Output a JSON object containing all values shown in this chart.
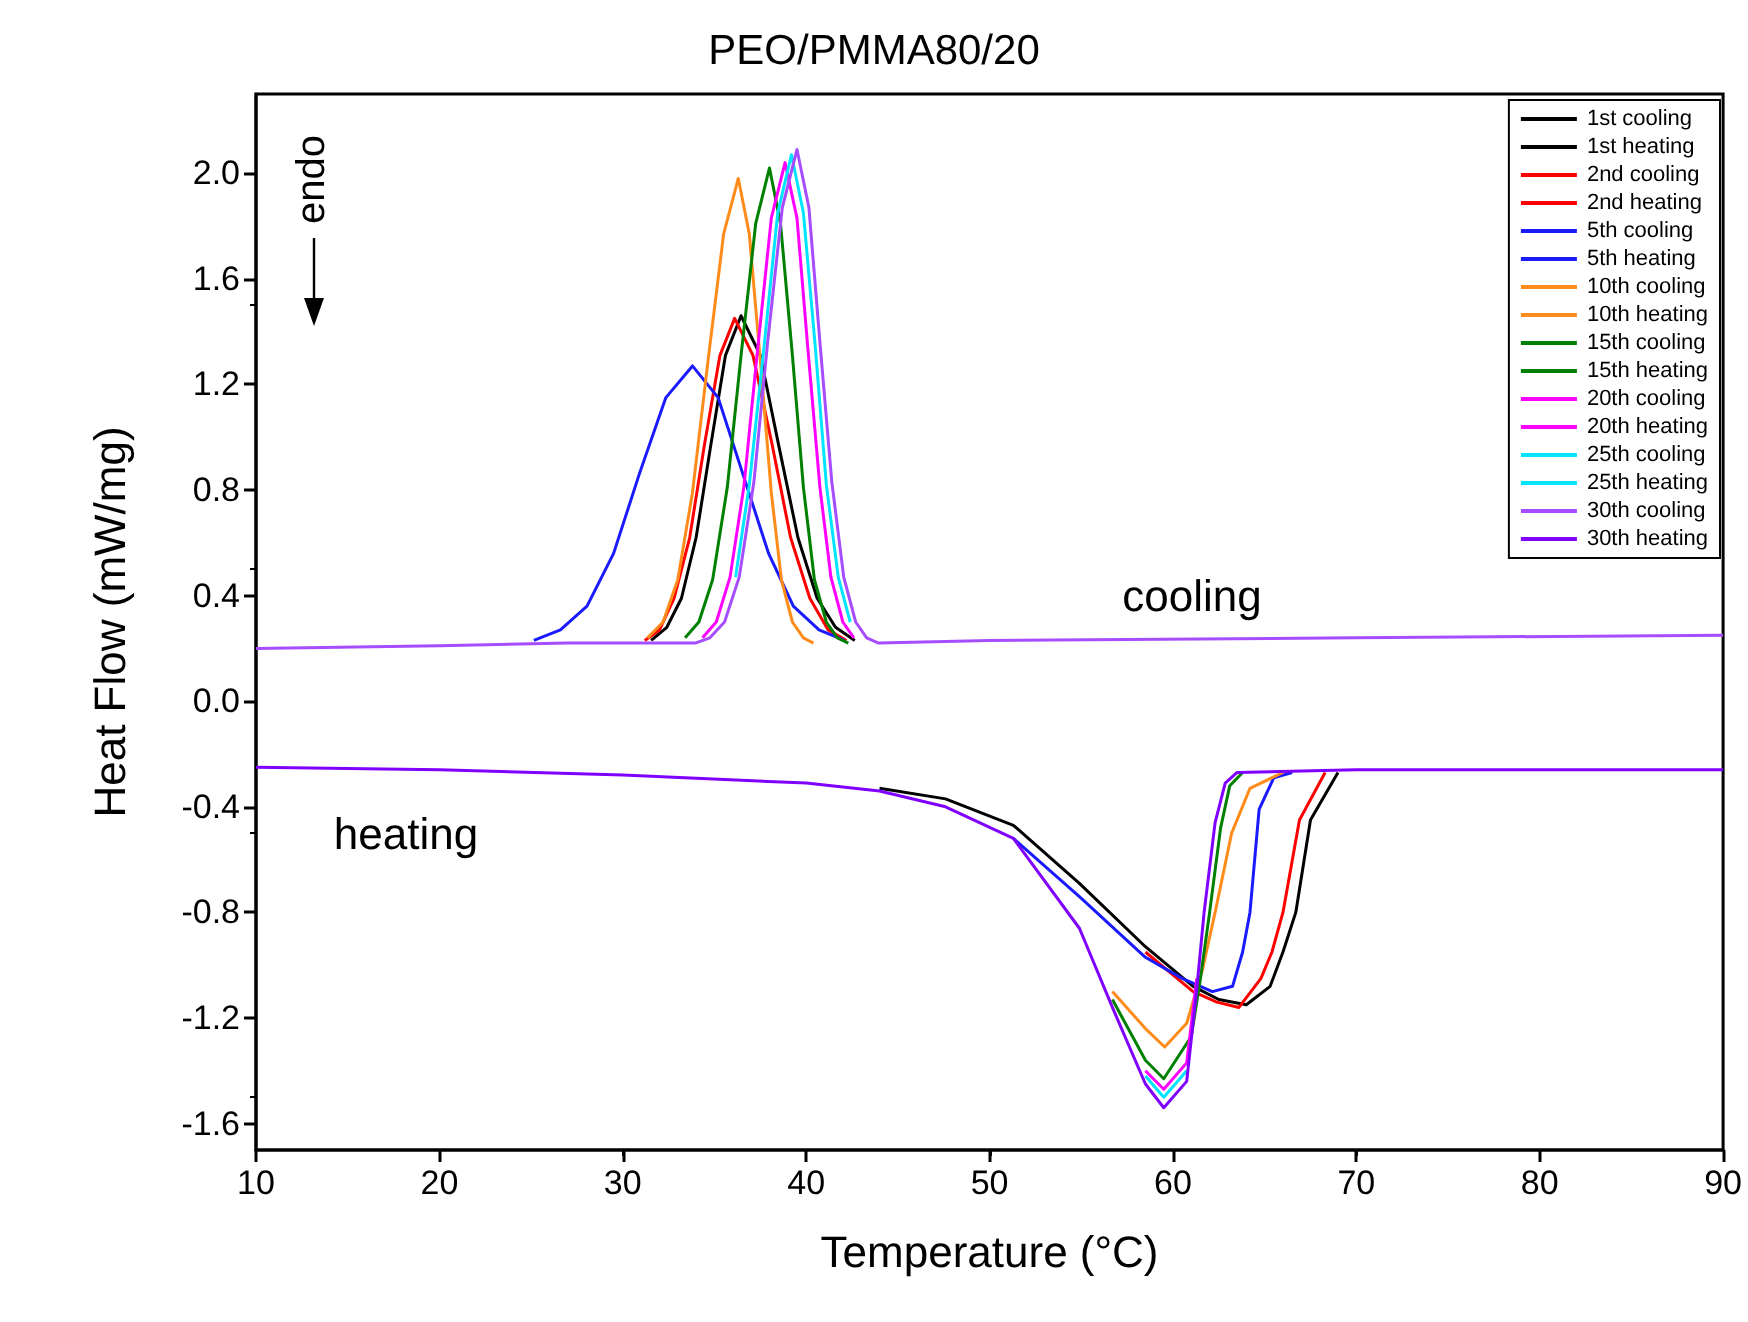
{
  "chart_data": {
    "type": "line",
    "title": "PEO/PMMA80/20",
    "xlabel": "Temperature (°C)",
    "ylabel": "Heat Flow (mW/mg)",
    "xlim": [
      10,
      90
    ],
    "xticks": [
      10,
      20,
      30,
      40,
      50,
      60,
      70,
      80,
      90
    ],
    "ylim": [
      -1.7,
      2.3
    ],
    "yticks": [
      {
        "value": -1.6,
        "label": "-1.6"
      },
      {
        "value": -1.2,
        "label": "-1.2"
      },
      {
        "value": -0.8,
        "label": "-0.8"
      },
      {
        "value": -0.4,
        "label": "-0.4"
      },
      {
        "value": 0,
        "label": "0.0"
      },
      {
        "value": 0.4,
        "label": "0.4"
      },
      {
        "value": 0.8,
        "label": "0.8"
      },
      {
        "value": 1.2,
        "label": "1.2"
      },
      {
        "value": 1.6,
        "label": "1.6"
      },
      {
        "value": 2.0,
        "label": "2.0"
      }
    ],
    "grid": false,
    "legend": "top right",
    "marker": "none",
    "line_style": "solid",
    "annotations": [
      "endo",
      "cooling",
      "heating"
    ],
    "series": [
      {
        "name": "1st cooling",
        "color": "#000000",
        "x": [
          31.55,
          32.4,
          33.2,
          34.0,
          34.8,
          35.6,
          36.45,
          37.5,
          38.5,
          39.55,
          40.6,
          41.6,
          42.65
        ],
        "values": [
          0.23,
          0.28,
          0.39,
          0.62,
          0.97,
          1.31,
          1.46,
          1.31,
          0.97,
          0.62,
          0.39,
          0.28,
          0.23
        ]
      },
      {
        "name": "1st heating",
        "color": "#000000",
        "x": [
          44,
          47.6,
          51.3,
          54.9,
          58.5,
          61.1,
          62.5,
          64.0,
          65.3,
          66.0,
          66.7,
          67.5,
          69
        ],
        "values": [
          -0.33,
          -0.37,
          -0.47,
          -0.69,
          -0.93,
          -1.08,
          -1.13,
          -1.15,
          -1.08,
          -0.95,
          -0.8,
          -0.45,
          -0.27
        ]
      },
      {
        "name": "2nd cooling",
        "color": "#ff0000",
        "x": [
          31.2,
          32.0,
          32.8,
          33.65,
          34.45,
          35.3,
          36.1,
          37.1,
          38.15,
          39.15,
          40.2,
          41.2,
          42.2
        ],
        "values": [
          0.23,
          0.27,
          0.39,
          0.62,
          0.97,
          1.31,
          1.45,
          1.31,
          0.97,
          0.62,
          0.39,
          0.27,
          0.23
        ]
      },
      {
        "name": "2nd heating",
        "color": "#ff0000",
        "x": [
          58.5,
          61.1,
          62.4,
          63.6,
          64.8,
          65.4,
          66.0,
          66.9,
          68.3
        ],
        "values": [
          -0.95,
          -1.1,
          -1.14,
          -1.16,
          -1.05,
          -0.95,
          -0.8,
          -0.45,
          -0.27
        ]
      },
      {
        "name": "5th cooling",
        "color": "#1a1aff",
        "x": [
          25.15,
          26.6,
          28.05,
          29.5,
          30.9,
          32.35,
          33.8,
          35.2,
          36.55,
          37.95,
          39.3,
          40.7,
          42.1
        ],
        "values": [
          0.23,
          0.27,
          0.36,
          0.56,
          0.86,
          1.15,
          1.27,
          1.15,
          0.86,
          0.56,
          0.36,
          0.27,
          0.23
        ]
      },
      {
        "name": "5th heating",
        "color": "#1a1aff",
        "x": [
          51.3,
          54.9,
          58.5,
          60.5,
          62.15,
          63.25,
          63.8,
          64.2,
          64.7,
          65.5,
          66.5
        ],
        "values": [
          -0.52,
          -0.74,
          -0.97,
          -1.05,
          -1.1,
          -1.08,
          -0.95,
          -0.8,
          -0.41,
          -0.29,
          -0.27
        ]
      },
      {
        "name": "10th cooling",
        "color": "#ff8c1a",
        "x": [
          31.35,
          32.2,
          33.0,
          33.8,
          34.65,
          35.5,
          36.3,
          36.9,
          37.5,
          38.1,
          38.65,
          39.25,
          39.85,
          40.4
        ],
        "values": [
          0.24,
          0.3,
          0.46,
          0.79,
          1.29,
          1.77,
          1.98,
          1.77,
          1.29,
          0.79,
          0.46,
          0.3,
          0.24,
          0.22
        ]
      },
      {
        "name": "10th heating",
        "color": "#ff8c1a",
        "x": [
          56.7,
          58.5,
          59.55,
          60.75,
          61.6,
          62.3,
          63.2,
          64.2,
          66
        ],
        "values": [
          -1.1,
          -1.24,
          -1.31,
          -1.22,
          -1.02,
          -0.8,
          -0.5,
          -0.33,
          -0.27
        ]
      },
      {
        "name": "15th cooling",
        "color": "#008000",
        "x": [
          33.4,
          34.15,
          34.9,
          35.7,
          36.45,
          37.25,
          38,
          38.6,
          39.25,
          39.85,
          40.45,
          41.1,
          41.7,
          42.3
        ],
        "values": [
          0.24,
          0.3,
          0.46,
          0.81,
          1.31,
          1.81,
          2.02,
          1.81,
          1.31,
          0.81,
          0.46,
          0.3,
          0.24,
          0.22
        ]
      },
      {
        "name": "15th heating",
        "color": "#008000",
        "x": [
          56.7,
          58.5,
          59.5,
          61.0,
          61.5,
          62.0,
          62.6,
          63.1,
          63.8
        ],
        "values": [
          -1.13,
          -1.36,
          -1.43,
          -1.27,
          -1.05,
          -0.8,
          -0.48,
          -0.32,
          -0.27
        ]
      },
      {
        "name": "20th cooling",
        "color": "#ff00ff",
        "x": [
          34.35,
          35.1,
          35.85,
          36.6,
          37.35,
          38.1,
          38.85,
          39.5,
          40.1,
          40.75,
          41.35,
          42.0,
          42.6
        ],
        "values": [
          0.24,
          0.3,
          0.47,
          0.81,
          1.33,
          1.83,
          2.04,
          1.83,
          1.33,
          0.81,
          0.47,
          0.3,
          0.24
        ]
      },
      {
        "name": "20th heating",
        "color": "#ff00ff",
        "x": [
          58.5,
          59.5,
          60.75,
          61.3
        ],
        "values": [
          -1.4,
          -1.47,
          -1.37,
          -1.05
        ]
      },
      {
        "name": "25th cooling",
        "color": "#00e5ff",
        "x": [
          36.15,
          36.9,
          37.7,
          38.45,
          39.2,
          39.85,
          40.5,
          41.1,
          41.75,
          42.4
        ],
        "values": [
          0.47,
          0.82,
          1.34,
          1.85,
          2.07,
          1.85,
          1.34,
          0.82,
          0.47,
          0.3
        ]
      },
      {
        "name": "25th heating",
        "color": "#00e5ff",
        "x": [
          58.5,
          59.5,
          60.75
        ],
        "values": [
          -1.42,
          -1.5,
          -1.4
        ]
      },
      {
        "name": "30th cooling",
        "color": "#a64dff",
        "x": [
          10,
          20,
          27,
          33.95,
          34.75,
          35.55,
          36.35,
          37.15,
          37.9,
          38.7,
          39.5,
          40.15,
          40.75,
          41.4,
          42.05,
          42.7,
          43.3,
          43.95,
          50,
          70,
          90
        ],
        "values": [
          0.2,
          0.21,
          0.22,
          0.22,
          0.24,
          0.3,
          0.47,
          0.83,
          1.36,
          1.87,
          2.09,
          1.87,
          1.36,
          0.83,
          0.47,
          0.3,
          0.24,
          0.22,
          0.23,
          0.24,
          0.25
        ]
      },
      {
        "name": "30th heating",
        "color": "#8000ff",
        "x": [
          10,
          20,
          30,
          40,
          44,
          47.6,
          51.3,
          54.9,
          56.7,
          58.5,
          59.5,
          60.75,
          61.3,
          61.7,
          62.3,
          62.85,
          63.5,
          70,
          80,
          90
        ],
        "values": [
          -0.25,
          -0.26,
          -0.28,
          -0.31,
          -0.34,
          -0.4,
          -0.52,
          -0.86,
          -1.16,
          -1.45,
          -1.54,
          -1.44,
          -1.09,
          -0.8,
          -0.46,
          -0.31,
          -0.27,
          -0.26,
          -0.26,
          -0.26
        ]
      }
    ]
  }
}
